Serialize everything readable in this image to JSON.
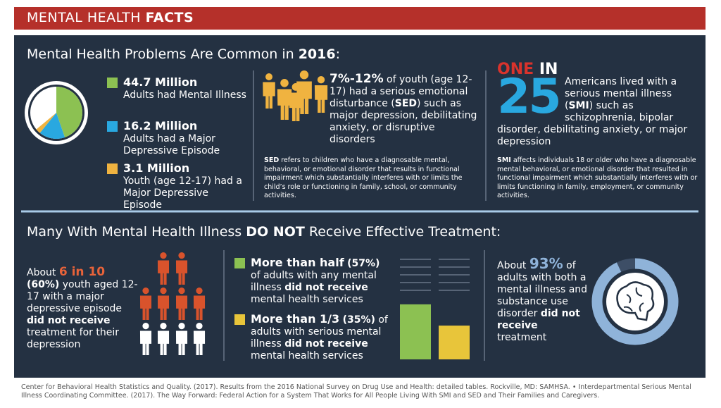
{
  "header": {
    "title": [
      "MENTAL HEALTH",
      "FACTS"
    ]
  },
  "section1": {
    "heading": [
      "Mental Health Problems Are Common in ",
      "2016",
      ":"
    ]
  },
  "sed": {
    "stat": [
      "7%-12%",
      " of youth (age 12-17) had a serious emotional disturbance (",
      "SED",
      ") such as major depression, debilitating anxiety, or disruptive disorders"
    ],
    "note": [
      "SED",
      " refers to children who have a diagnosable mental, behavioral, or emotional disorder that results in functional impairment which substantially interferes with or limits the child’s role or functioning in family, school, or community activities."
    ]
  },
  "smi": {
    "one": "ONE",
    "in": "IN",
    "number": "25",
    "stat": [
      "Americans lived with a serious mental illness (",
      "SMI",
      ") such as schizophrenia, bipolar disorder, debilitating anxiety, or major depression"
    ],
    "note": [
      "SMI",
      " affects individuals 18 or older who have a diagnosable mental behavioral, or emotional disorder that resulted in functional impairment which substantially interferes with or limits functioning in family, employment, or community activities."
    ]
  },
  "section2": {
    "heading": [
      "Many With Mental Health Illness ",
      "DO NOT",
      " Receive Effective Treatment:"
    ]
  },
  "chart_data": [
    {
      "type": "pie",
      "slices": [
        {
          "value": 44.7,
          "label": "44.7 Million",
          "text": "Adults had Mental Illness",
          "color": "#8cc152"
        },
        {
          "value": 16.2,
          "label": "16.2 Million",
          "text": "Adults had a Major Depressive Episode",
          "color": "#29a8e0"
        },
        {
          "value": 3.1,
          "label": "3.1 Million",
          "text": "Youth (age 12-17) had a Major Depressive Episode",
          "color": "#f0b340"
        }
      ]
    },
    {
      "type": "bar",
      "values": [
        57,
        35
      ],
      "value_labels": [
        "(57%)",
        "(35%)"
      ],
      "colors": [
        "#8cc152",
        "#e8c53a"
      ],
      "descriptions": [
        [
          "More than half",
          " of adults with any mental illness ",
          "did not receive",
          " mental health services"
        ],
        [
          "More than 1/3",
          " of adults with serious mental illness ",
          "did not receive",
          " mental health services"
        ]
      ]
    },
    {
      "type": "icon_array",
      "value": 60,
      "value_label": "(60%)",
      "color": "#d9532c",
      "text": [
        "About ",
        "6 in 10",
        " youth aged 12-17 with a major depressive episode ",
        "did not receive",
        " treatment for their depression"
      ]
    },
    {
      "type": "donut",
      "value": 93,
      "value_label": "93%",
      "color": "#8fb3d9",
      "text": [
        "About ",
        " of adults with both a mental illness and substance use disorder ",
        "did not receive",
        " treatment"
      ]
    }
  ],
  "footer": "Center for Behavioral Health Statistics and Quality. (2017). Results from the 2016 National Survey on Drug Use and Health: detailed tables. Rockville, MD: SAMHSA. • Interdepartmental Serious Mental Illness Coordinating Committee. (2017). The Way Forward: Federal Action for a System That Works for All People Living With SMI and SED and Their Families and Caregivers."
}
